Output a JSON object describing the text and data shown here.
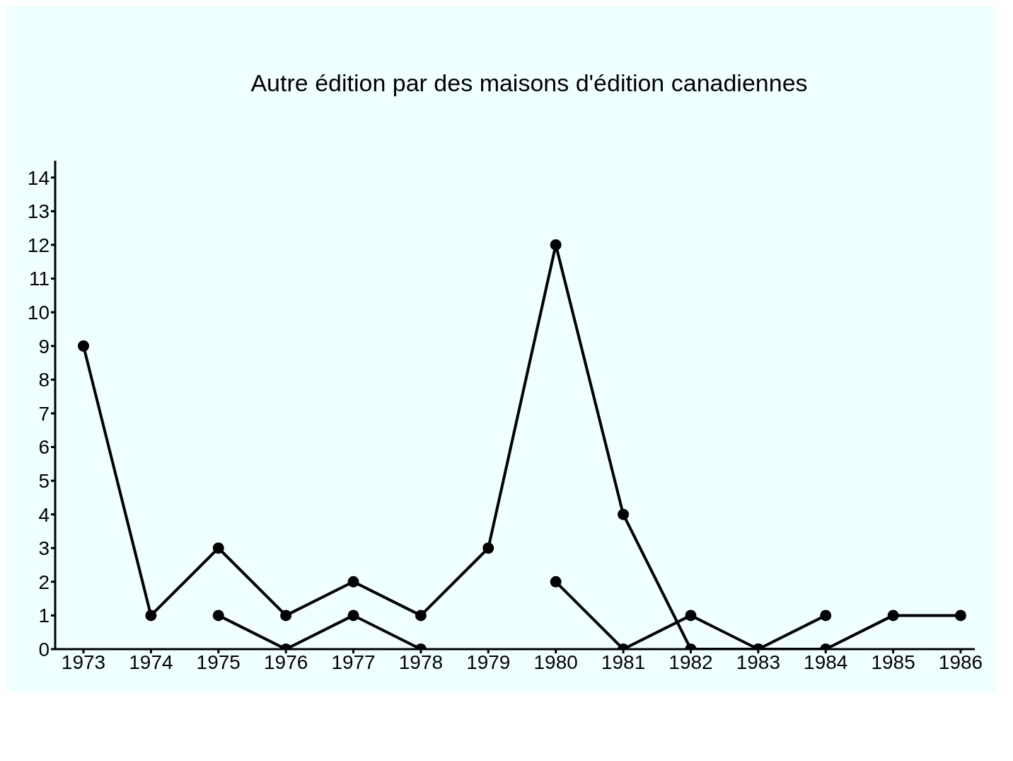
{
  "chart_data": {
    "type": "line",
    "title": "Autre édition par des maisons d'édition canadiennes",
    "categories": [
      "1973",
      "1974",
      "1975",
      "1976",
      "1977",
      "1978",
      "1979",
      "1980",
      "1981",
      "1982",
      "1983",
      "1984",
      "1985",
      "1986"
    ],
    "series": [
      {
        "color": "#000000",
        "values": [
          9,
          1,
          3,
          1,
          2,
          1,
          3,
          12,
          4,
          0,
          0,
          1,
          null,
          null
        ]
      },
      {
        "color": "#000000",
        "values": [
          null,
          null,
          1,
          0,
          1,
          0,
          null,
          2,
          0,
          1,
          0,
          0,
          1,
          1
        ]
      }
    ],
    "ylim": [
      0,
      14.5
    ],
    "yticks": [
      0,
      1,
      2,
      3,
      4,
      5,
      6,
      7,
      8,
      9,
      10,
      11,
      12,
      13,
      14
    ],
    "grid": false,
    "legend": false,
    "marker": "circle",
    "line_style": "solid"
  }
}
